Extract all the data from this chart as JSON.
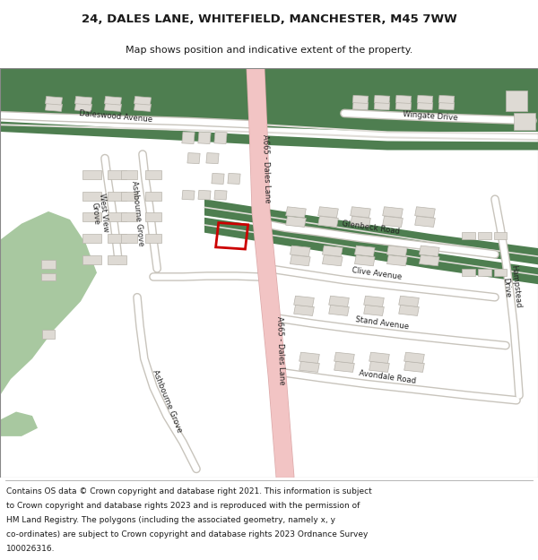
{
  "title_line1": "24, DALES LANE, WHITEFIELD, MANCHESTER, M45 7WW",
  "title_line2": "Map shows position and indicative extent of the property.",
  "footer_lines": [
    "Contains OS data © Crown copyright and database right 2021. This information is subject",
    "to Crown copyright and database rights 2023 and is reproduced with the permission of",
    "HM Land Registry. The polygons (including the associated geometry, namely x, y",
    "co-ordinates) are subject to Crown copyright and database rights 2023 Ordnance Survey",
    "100026316."
  ],
  "map_bg": "#f0ede8",
  "green_dark": "#4e7e50",
  "green_light": "#a8c8a0",
  "road_pink": "#f2c4c4",
  "road_pink_edge": "#dba8a8",
  "road_white": "#ffffff",
  "road_gray_edge": "#c8c4bc",
  "building_fill": "#dedad4",
  "building_edge": "#b8b4ac",
  "red_plot": "#cc0000",
  "text_color": "#1a1a1a"
}
